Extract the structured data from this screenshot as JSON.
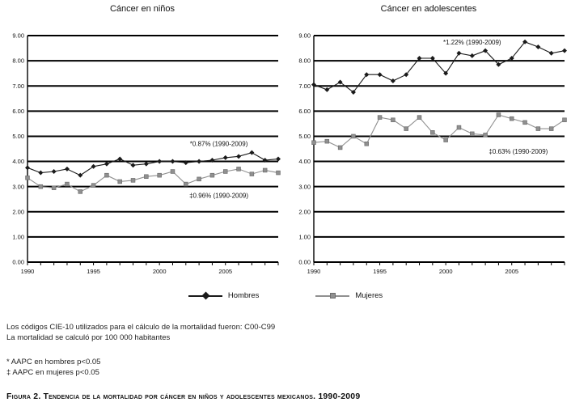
{
  "figure": {
    "caption": "Figura 2. Tendencia de la mortalidad por cáncer en niños y adolescentes mexicanos. 1990-2009",
    "footnotes": [
      "Los códigos CIE-10 utilizados para el cálculo de la mortalidad fueron: C00-C99",
      "La mortalidad se calculó por 100 000 habitantes",
      "* AAPC  en hombres p<0.05",
      "‡ AAPC en mujeres p<0.05"
    ]
  },
  "legend": {
    "hombres": "Hombres",
    "mujeres": "Mujeres",
    "position": "bottom-center"
  },
  "colors": {
    "hombres": "#1a1a1a",
    "mujeres": "#909090",
    "grid": "#000000"
  },
  "chart_data": [
    {
      "type": "line",
      "title": "Cáncer en niños",
      "xlabel": "",
      "ylabel": "",
      "x": [
        1990,
        1991,
        1992,
        1993,
        1994,
        1995,
        1996,
        1997,
        1998,
        1999,
        2000,
        2001,
        2002,
        2003,
        2004,
        2005,
        2006,
        2007,
        2008,
        2009
      ],
      "x_tick_labels": [
        1990,
        1995,
        2000,
        2005
      ],
      "ylim": [
        0,
        9
      ],
      "y_tick_step": 1,
      "grid": true,
      "series": [
        {
          "name": "Hombres",
          "color_key": "hombres",
          "marker": "diamond",
          "values": [
            3.75,
            3.55,
            3.6,
            3.7,
            3.45,
            3.8,
            3.9,
            4.1,
            3.85,
            3.9,
            4.0,
            4.0,
            3.95,
            4.0,
            4.05,
            4.15,
            4.2,
            4.35,
            4.05,
            4.1
          ]
        },
        {
          "name": "Mujeres",
          "color_key": "mujeres",
          "marker": "square",
          "values": [
            3.35,
            3.0,
            2.95,
            3.1,
            2.8,
            3.05,
            3.45,
            3.2,
            3.25,
            3.4,
            3.45,
            3.6,
            3.1,
            3.3,
            3.45,
            3.6,
            3.7,
            3.5,
            3.65,
            3.55
          ]
        }
      ],
      "annotations": [
        {
          "text": "*0.87% (1990-2009)",
          "x": 2004.5,
          "y": 4.62
        },
        {
          "text": "‡0.96% (1990-2009)",
          "x": 2004.5,
          "y": 2.55
        }
      ]
    },
    {
      "type": "line",
      "title": "Cáncer en adolescentes",
      "xlabel": "",
      "ylabel": "",
      "x": [
        1990,
        1991,
        1992,
        1993,
        1994,
        1995,
        1996,
        1997,
        1998,
        1999,
        2000,
        2001,
        2002,
        2003,
        2004,
        2005,
        2006,
        2007,
        2008,
        2009
      ],
      "x_tick_labels": [
        1990,
        1995,
        2000,
        2005
      ],
      "ylim": [
        0,
        9
      ],
      "y_tick_step": 1,
      "grid": true,
      "series": [
        {
          "name": "Hombres",
          "color_key": "hombres",
          "marker": "diamond",
          "values": [
            7.05,
            6.85,
            7.15,
            6.75,
            7.45,
            7.45,
            7.2,
            7.45,
            8.1,
            8.1,
            7.5,
            8.3,
            8.2,
            8.4,
            7.85,
            8.1,
            8.75,
            8.55,
            8.3,
            8.4
          ]
        },
        {
          "name": "Mujeres",
          "color_key": "mujeres",
          "marker": "square",
          "values": [
            4.75,
            4.8,
            4.55,
            5.0,
            4.7,
            5.75,
            5.65,
            5.3,
            5.75,
            5.15,
            4.85,
            5.35,
            5.1,
            5.05,
            5.85,
            5.7,
            5.55,
            5.3,
            5.3,
            5.65
          ]
        }
      ],
      "annotations": [
        {
          "text": "*1.22% (1990-2009)",
          "x": 2002.0,
          "y": 8.65
        },
        {
          "text": "‡0.63% (1990-2009)",
          "x": 2005.5,
          "y": 4.3
        }
      ]
    }
  ]
}
